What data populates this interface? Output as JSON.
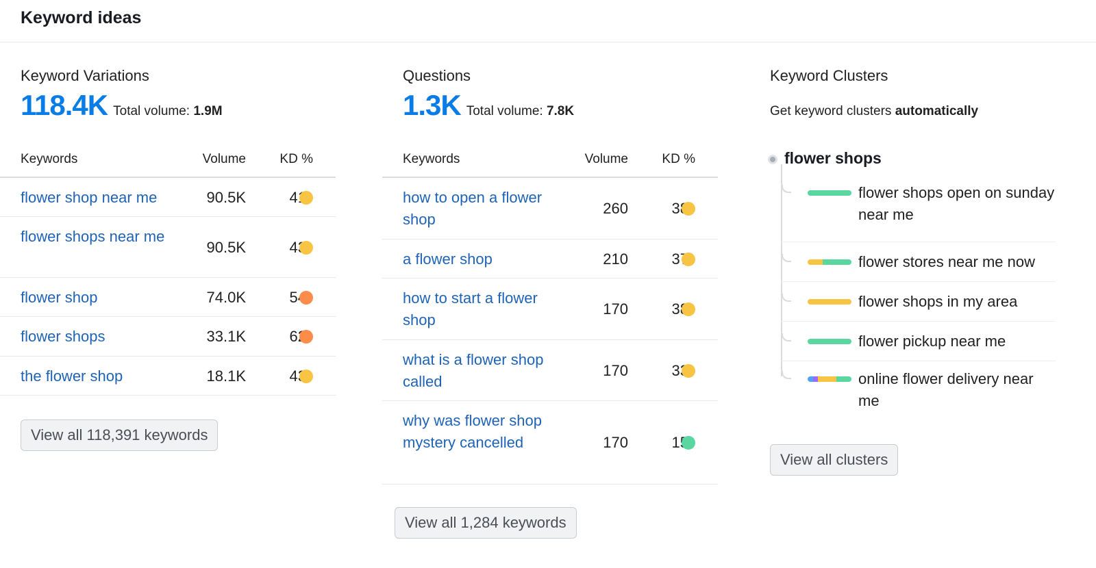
{
  "header": {
    "title": "Keyword ideas"
  },
  "variations": {
    "title": "Keyword Variations",
    "count": "118.4K",
    "total_label": "Total volume:",
    "total_value": "1.9M",
    "columns": {
      "keywords": "Keywords",
      "volume": "Volume",
      "kd": "KD %"
    },
    "rows": [
      {
        "keyword": "flower shop near me",
        "volume": "90.5K",
        "kd": "41",
        "kd_color": "#f7c443"
      },
      {
        "keyword": "flower shops near me",
        "volume": "90.5K",
        "kd": "43",
        "kd_color": "#f7c443"
      },
      {
        "keyword": "flower shop",
        "volume": "74.0K",
        "kd": "54",
        "kd_color": "#fb8c4a"
      },
      {
        "keyword": "flower shops",
        "volume": "33.1K",
        "kd": "62",
        "kd_color": "#fb8c4a"
      },
      {
        "keyword": "the flower shop",
        "volume": "18.1K",
        "kd": "43",
        "kd_color": "#f7c443"
      }
    ],
    "view_all": "View all 118,391 keywords"
  },
  "questions": {
    "title": "Questions",
    "count": "1.3K",
    "total_label": "Total volume:",
    "total_value": "7.8K",
    "columns": {
      "keywords": "Keywords",
      "volume": "Volume",
      "kd": "KD %"
    },
    "rows": [
      {
        "keyword": "how to open a flower shop",
        "volume": "260",
        "kd": "38",
        "kd_color": "#f7c443"
      },
      {
        "keyword": "a flower shop",
        "volume": "210",
        "kd": "37",
        "kd_color": "#f7c443"
      },
      {
        "keyword": "how to start a flower shop",
        "volume": "170",
        "kd": "38",
        "kd_color": "#f7c443"
      },
      {
        "keyword": "what is a flower shop called",
        "volume": "170",
        "kd": "33",
        "kd_color": "#f7c443"
      },
      {
        "keyword": "why was flower shop mystery cancelled",
        "volume": "170",
        "kd": "15",
        "kd_color": "#5ad6a0"
      }
    ],
    "view_all": "View all 1,284 keywords"
  },
  "clusters": {
    "title": "Keyword Clusters",
    "subtitle_prefix": "Get keyword clusters",
    "subtitle_bold": "automatically",
    "root": "flower shops",
    "items": [
      {
        "label": "flower shops open on sunday near me",
        "segments": [
          {
            "color": "#5ad6a0",
            "share": 1
          }
        ]
      },
      {
        "label": "flower stores near me now",
        "segments": [
          {
            "color": "#f7c443",
            "share": 0.35
          },
          {
            "color": "#5ad6a0",
            "share": 0.65
          }
        ]
      },
      {
        "label": "flower shops in my area",
        "segments": [
          {
            "color": "#f7c443",
            "share": 1
          }
        ]
      },
      {
        "label": "flower pickup near me",
        "segments": [
          {
            "color": "#5ad6a0",
            "share": 1
          }
        ]
      },
      {
        "label": "online flower delivery near me",
        "segments": [
          {
            "color": "#4da3f7",
            "share": 0.12
          },
          {
            "color": "#9b6cf2",
            "share": 0.12
          },
          {
            "color": "#f7c443",
            "share": 0.41
          },
          {
            "color": "#5ad6a0",
            "share": 0.35
          }
        ]
      }
    ],
    "view_all": "View all clusters"
  }
}
